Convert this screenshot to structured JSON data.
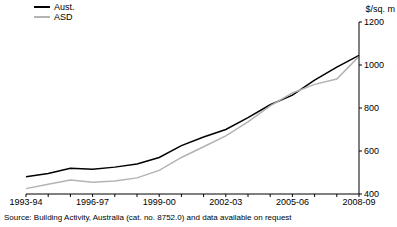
{
  "chart_data": {
    "type": "line",
    "y_label": "$/sq. m",
    "note": "Source: Building Activity, Australia (cat. no. 8752.0) and data available on request",
    "categories": [
      "1993-94",
      null,
      null,
      "1996-97",
      null,
      null,
      "1999-00",
      null,
      null,
      "2002-03",
      null,
      null,
      "2005-06",
      null,
      null,
      "2008-09"
    ],
    "series": [
      {
        "name": "Aust.",
        "color": "#000000",
        "values": [
          480,
          495,
          520,
          515,
          525,
          540,
          570,
          625,
          665,
          700,
          755,
          815,
          860,
          930,
          990,
          1045
        ]
      },
      {
        "name": "ASD",
        "color": "#b3b3b3",
        "values": [
          425,
          445,
          465,
          455,
          460,
          475,
          510,
          570,
          620,
          670,
          735,
          810,
          870,
          910,
          935,
          1040
        ]
      }
    ],
    "ylim": [
      400,
      1200
    ],
    "yticks": [
      400,
      600,
      800,
      1000,
      1200
    ],
    "grid": false,
    "legend": "top-left"
  }
}
